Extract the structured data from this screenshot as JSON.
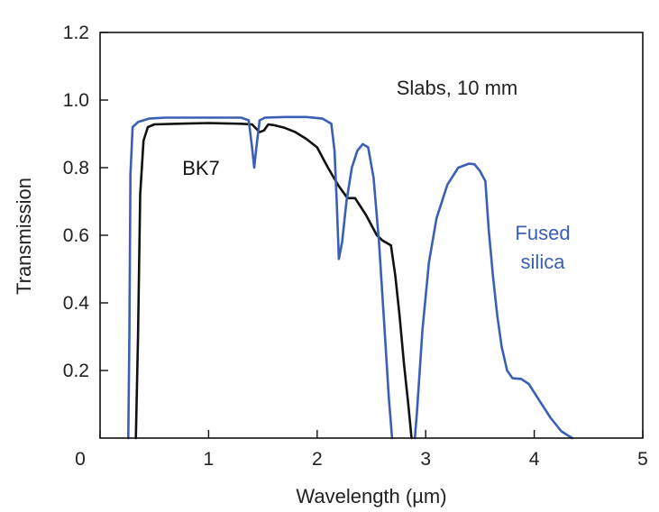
{
  "chart_data": {
    "type": "line",
    "title": "",
    "xlabel": "Wavelength (µm)",
    "ylabel": "Transmission",
    "xlim": [
      0,
      5
    ],
    "ylim": [
      0,
      1.2
    ],
    "x_ticks": [
      0,
      1,
      2,
      3,
      4,
      5
    ],
    "x_tick_labels": [
      "0",
      "1",
      "2",
      "3",
      "4",
      "5"
    ],
    "y_ticks": [
      0.2,
      0.4,
      0.6,
      0.8,
      1.0,
      1.2
    ],
    "y_tick_labels": [
      "0.2",
      "0.4",
      "0.6",
      "0.8",
      "1.0",
      "1.2"
    ],
    "grid": false,
    "legend": "none",
    "annotations": [
      {
        "id": "slabs",
        "text": "Slabs, 10 mm",
        "color": "#222222"
      },
      {
        "id": "bk7",
        "text": "BK7",
        "color": "#111111"
      },
      {
        "id": "fused1",
        "text": "Fused",
        "color": "#3a5fb5"
      },
      {
        "id": "fused2",
        "text": "silica",
        "color": "#3a5fb5"
      }
    ],
    "series": [
      {
        "name": "BK7",
        "color": "#111111",
        "points": [
          [
            0.33,
            0.0
          ],
          [
            0.35,
            0.3
          ],
          [
            0.37,
            0.72
          ],
          [
            0.4,
            0.88
          ],
          [
            0.44,
            0.92
          ],
          [
            0.5,
            0.928
          ],
          [
            0.7,
            0.93
          ],
          [
            1.0,
            0.932
          ],
          [
            1.3,
            0.93
          ],
          [
            1.4,
            0.928
          ],
          [
            1.47,
            0.905
          ],
          [
            1.51,
            0.91
          ],
          [
            1.55,
            0.928
          ],
          [
            1.6,
            0.926
          ],
          [
            1.7,
            0.918
          ],
          [
            1.8,
            0.905
          ],
          [
            1.9,
            0.885
          ],
          [
            2.0,
            0.86
          ],
          [
            2.1,
            0.8
          ],
          [
            2.2,
            0.745
          ],
          [
            2.28,
            0.71
          ],
          [
            2.35,
            0.71
          ],
          [
            2.45,
            0.66
          ],
          [
            2.55,
            0.6
          ],
          [
            2.6,
            0.585
          ],
          [
            2.68,
            0.57
          ],
          [
            2.72,
            0.48
          ],
          [
            2.76,
            0.36
          ],
          [
            2.8,
            0.22
          ],
          [
            2.84,
            0.1
          ],
          [
            2.87,
            0.0
          ]
        ]
      },
      {
        "name": "Fused silica",
        "color": "#3a5fb5",
        "points": [
          [
            0.26,
            0.0
          ],
          [
            0.27,
            0.3
          ],
          [
            0.28,
            0.78
          ],
          [
            0.3,
            0.92
          ],
          [
            0.35,
            0.935
          ],
          [
            0.45,
            0.945
          ],
          [
            0.6,
            0.948
          ],
          [
            1.0,
            0.948
          ],
          [
            1.3,
            0.948
          ],
          [
            1.37,
            0.94
          ],
          [
            1.4,
            0.86
          ],
          [
            1.42,
            0.8
          ],
          [
            1.44,
            0.86
          ],
          [
            1.47,
            0.94
          ],
          [
            1.52,
            0.948
          ],
          [
            1.7,
            0.95
          ],
          [
            1.9,
            0.95
          ],
          [
            2.05,
            0.945
          ],
          [
            2.13,
            0.93
          ],
          [
            2.16,
            0.85
          ],
          [
            2.18,
            0.7
          ],
          [
            2.2,
            0.53
          ],
          [
            2.23,
            0.58
          ],
          [
            2.27,
            0.7
          ],
          [
            2.32,
            0.8
          ],
          [
            2.37,
            0.85
          ],
          [
            2.42,
            0.87
          ],
          [
            2.47,
            0.86
          ],
          [
            2.52,
            0.77
          ],
          [
            2.57,
            0.58
          ],
          [
            2.62,
            0.33
          ],
          [
            2.66,
            0.12
          ],
          [
            2.69,
            0.0
          ],
          null,
          [
            2.9,
            0.0
          ],
          [
            2.92,
            0.08
          ],
          [
            2.97,
            0.32
          ],
          [
            3.03,
            0.52
          ],
          [
            3.1,
            0.65
          ],
          [
            3.2,
            0.75
          ],
          [
            3.3,
            0.8
          ],
          [
            3.4,
            0.812
          ],
          [
            3.45,
            0.81
          ],
          [
            3.5,
            0.79
          ],
          [
            3.55,
            0.76
          ],
          [
            3.58,
            0.62
          ],
          [
            3.62,
            0.48
          ],
          [
            3.66,
            0.36
          ],
          [
            3.7,
            0.27
          ],
          [
            3.75,
            0.2
          ],
          [
            3.8,
            0.177
          ],
          [
            3.88,
            0.175
          ],
          [
            3.95,
            0.16
          ],
          [
            4.05,
            0.11
          ],
          [
            4.15,
            0.06
          ],
          [
            4.25,
            0.02
          ],
          [
            4.35,
            0.0
          ]
        ]
      }
    ]
  }
}
